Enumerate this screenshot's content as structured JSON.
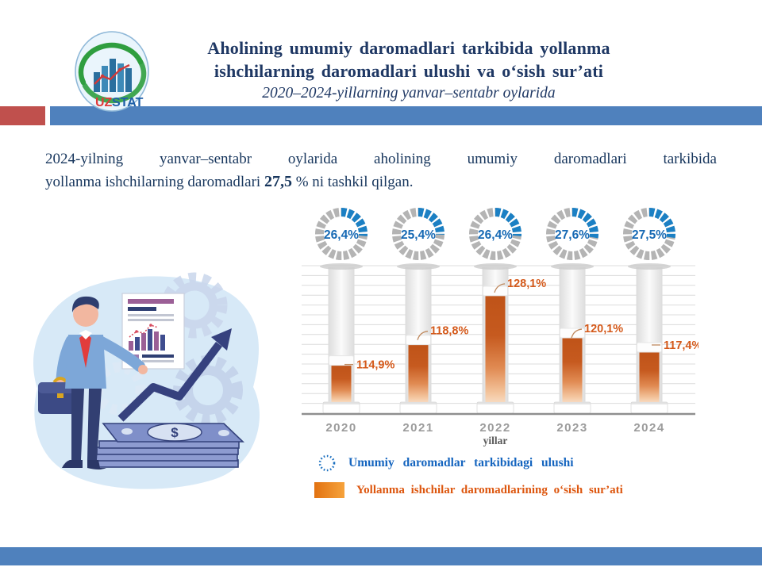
{
  "header": {
    "logo_uz": "UZ",
    "logo_stat": "STAT",
    "title_line1": "Aholining umumiy daromadlari tarkibida yollanma",
    "title_line2": "ishchilarning daromadlari ulushi va o‘sish sur’ati",
    "subtitle": "2020–2024-yillarning yanvar–sentabr oylarida"
  },
  "intro": {
    "line1": "2024-yilning yanvar–sentabr oylarida aholining umumiy daromadlari tarkibida",
    "line2_prefix": "yollanma ishchilarning daromadlari ",
    "highlight": "27,5",
    "line2_suffix": " % ni tashkil qilgan."
  },
  "chart_data": {
    "type": "bar",
    "categories": [
      "2020",
      "2021",
      "2022",
      "2023",
      "2024"
    ],
    "series": [
      {
        "name": "Umumiy daromadlar tarkibidagi ulushi",
        "unit": "%",
        "values": [
          26.4,
          25.4,
          26.4,
          27.6,
          27.5
        ],
        "labels": [
          "26,4%",
          "25,4%",
          "26,4%",
          "27,6%",
          "27,5%"
        ],
        "style": "dotted-donut"
      },
      {
        "name": "Yollanma ishchilar daromadlarining o‘sish sur’ati",
        "unit": "%",
        "values": [
          114.9,
          118.8,
          128.1,
          120.1,
          117.4
        ],
        "labels": [
          "114,9%",
          "118,8%",
          "128,1%",
          "120,1%",
          "117,4%"
        ],
        "style": "gradient-bar"
      }
    ],
    "xlabel": "yillar",
    "ylim": [
      104,
      132
    ],
    "grid": true,
    "legend_position": "bottom"
  },
  "legend": {
    "share_label": "Umumiy daromadlar tarkibidagi ulushi",
    "growth_label": "Yollanma ishchilar daromadlarining o‘sish sur’ati"
  },
  "colors": {
    "navy_text": "#1f3864",
    "header_blue": "#4f81bd",
    "header_red": "#c0504d",
    "donut_blue": "#1b80c4",
    "donut_gray": "#b4b4b4",
    "donut_text": "#1669b4",
    "bar_orange_dark": "#bf5318",
    "bar_orange_light": "#f7d9bf",
    "bar_label_orange": "#d4591a",
    "year_gray": "#9b9b9b",
    "legend_blue": "#1565bf",
    "legend_orange": "#dd560e"
  }
}
